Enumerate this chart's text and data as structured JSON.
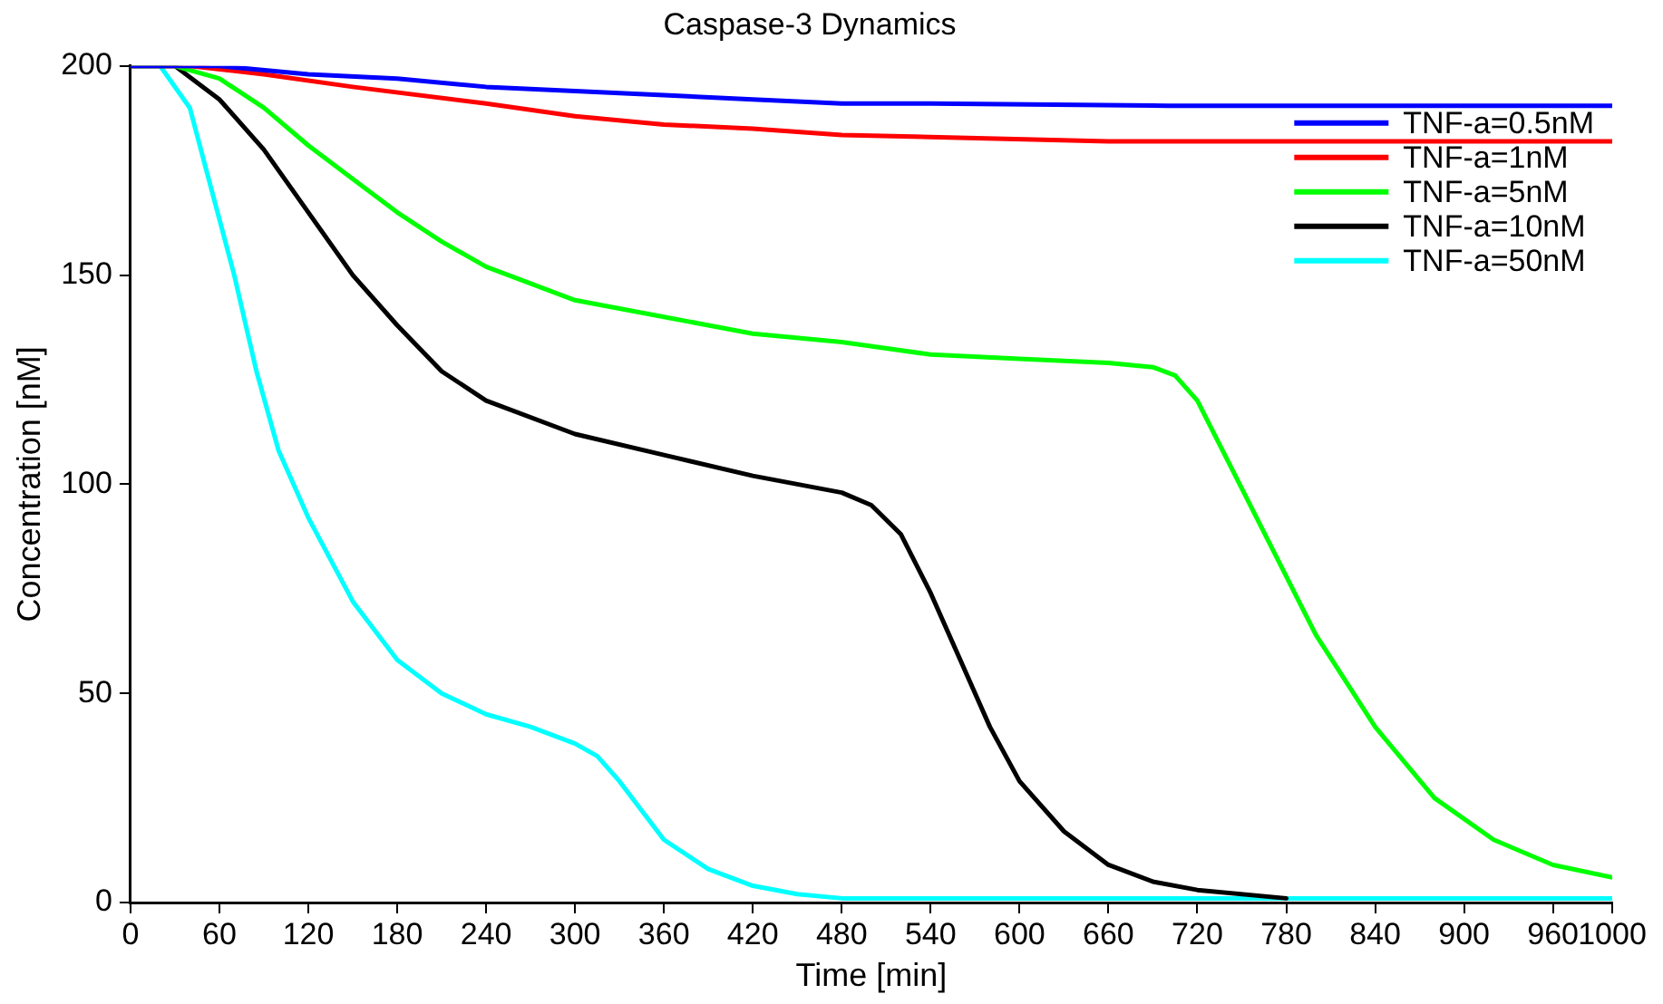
{
  "chart_data": {
    "type": "line",
    "title": "Caspase-3 Dynamics",
    "xlabel": "Time [min]",
    "ylabel": "Concentration [nM]",
    "xlim": [
      0,
      1000
    ],
    "xticks": [
      0,
      60,
      120,
      180,
      240,
      300,
      360,
      420,
      480,
      540,
      600,
      660,
      720,
      780,
      840,
      900,
      960,
      1000
    ],
    "ylim": [
      0,
      200
    ],
    "yticks": [
      0,
      50,
      100,
      150,
      200
    ],
    "grid": false,
    "legend": "top right",
    "marker": "none",
    "line_style": "solid",
    "series": [
      {
        "name": "TNF-a=0.5nM",
        "color": "#0000ff",
        "x": [
          0,
          60,
          120,
          180,
          240,
          300,
          360,
          420,
          480,
          540,
          700,
          1000
        ],
        "values": [
          200,
          200,
          198,
          197,
          195,
          194,
          193,
          192,
          191,
          191,
          190.5,
          190.5
        ]
      },
      {
        "name": "TNF-a=1nM",
        "color": "#ff0000",
        "x": [
          0,
          40,
          90,
          150,
          240,
          300,
          360,
          420,
          480,
          540,
          660,
          1000
        ],
        "values": [
          200,
          200,
          198,
          195,
          191,
          188,
          186,
          185,
          183.5,
          183,
          182,
          182
        ]
      },
      {
        "name": "TNF-a=5nM",
        "color": "#00ff00",
        "x": [
          0,
          30,
          60,
          90,
          120,
          150,
          180,
          210,
          240,
          270,
          300,
          360,
          420,
          480,
          540,
          600,
          660,
          690,
          705,
          720,
          760,
          800,
          840,
          880,
          920,
          960,
          1000
        ],
        "values": [
          200,
          200,
          197,
          190,
          181,
          173,
          165,
          158,
          152,
          148,
          144,
          140,
          136,
          134,
          131,
          130,
          129,
          128,
          126,
          120,
          92,
          64,
          42,
          25,
          15,
          9,
          6
        ]
      },
      {
        "name": "TNF-a=10nM",
        "color": "#000000",
        "x": [
          0,
          30,
          60,
          90,
          120,
          150,
          180,
          210,
          240,
          300,
          360,
          420,
          480,
          500,
          520,
          540,
          560,
          580,
          600,
          630,
          660,
          690,
          720,
          780
        ],
        "values": [
          200,
          200,
          192,
          180,
          165,
          150,
          138,
          127,
          120,
          112,
          107,
          102,
          98,
          95,
          88,
          74,
          58,
          42,
          29,
          17,
          9,
          5,
          3,
          1
        ]
      },
      {
        "name": "TNF-a=50nM",
        "color": "#00ffff",
        "x": [
          0,
          20,
          40,
          55,
          70,
          85,
          100,
          120,
          150,
          180,
          210,
          240,
          270,
          300,
          315,
          330,
          345,
          360,
          390,
          420,
          450,
          480,
          1000
        ],
        "values": [
          200,
          200,
          190,
          170,
          150,
          127,
          108,
          92,
          72,
          58,
          50,
          45,
          42,
          38,
          35,
          29,
          22,
          15,
          8,
          4,
          2,
          1,
          1
        ]
      }
    ]
  }
}
